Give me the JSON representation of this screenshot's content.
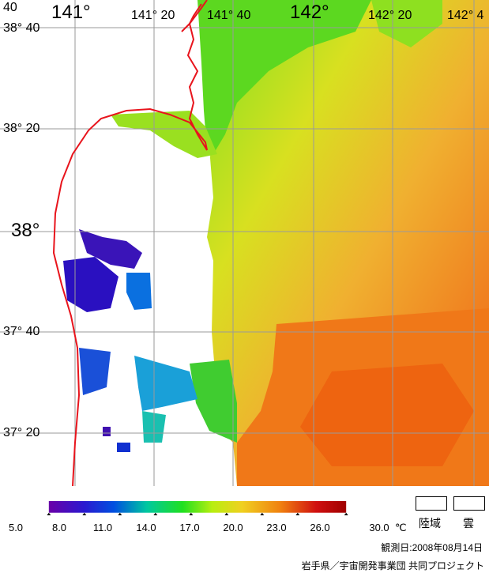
{
  "map": {
    "lon_labels": [
      {
        "text": "141°",
        "size": "big"
      },
      {
        "text": "141° 20",
        "size": "small"
      },
      {
        "text": "141° 40",
        "size": "small"
      },
      {
        "text": "142°",
        "size": "big"
      },
      {
        "text": "142° 20",
        "size": "small"
      },
      {
        "text": "142° 4",
        "size": "small"
      }
    ],
    "lat_labels": [
      {
        "text": "38° 40",
        "size": "small"
      },
      {
        "text": "38° 20",
        "size": "small"
      },
      {
        "text": "38°",
        "size": "big"
      },
      {
        "text": "37° 40",
        "size": "small"
      },
      {
        "text": "37° 20",
        "size": "small"
      }
    ],
    "corner_fragment": "40",
    "coastline_color": "#e8141c",
    "grid_color": "#9a9a9a"
  },
  "colorbar": {
    "ticks": [
      "5.0",
      "8.0",
      "11.0",
      "14.0",
      "17.0",
      "20.0",
      "23.0",
      "26.0",
      "30.0"
    ],
    "unit": "℃",
    "stops": [
      "#6a00a8",
      "#2a1ad0",
      "#0050e0",
      "#00c8a0",
      "#20e020",
      "#b8ee10",
      "#f0d020",
      "#f08010",
      "#d01010",
      "#a00000"
    ]
  },
  "legend": {
    "land": "陸域",
    "cloud": "雲"
  },
  "observation_date": "観測日:2008年08月14日",
  "credit": "岩手県／宇宙開発事業団 共同プロジェクト"
}
